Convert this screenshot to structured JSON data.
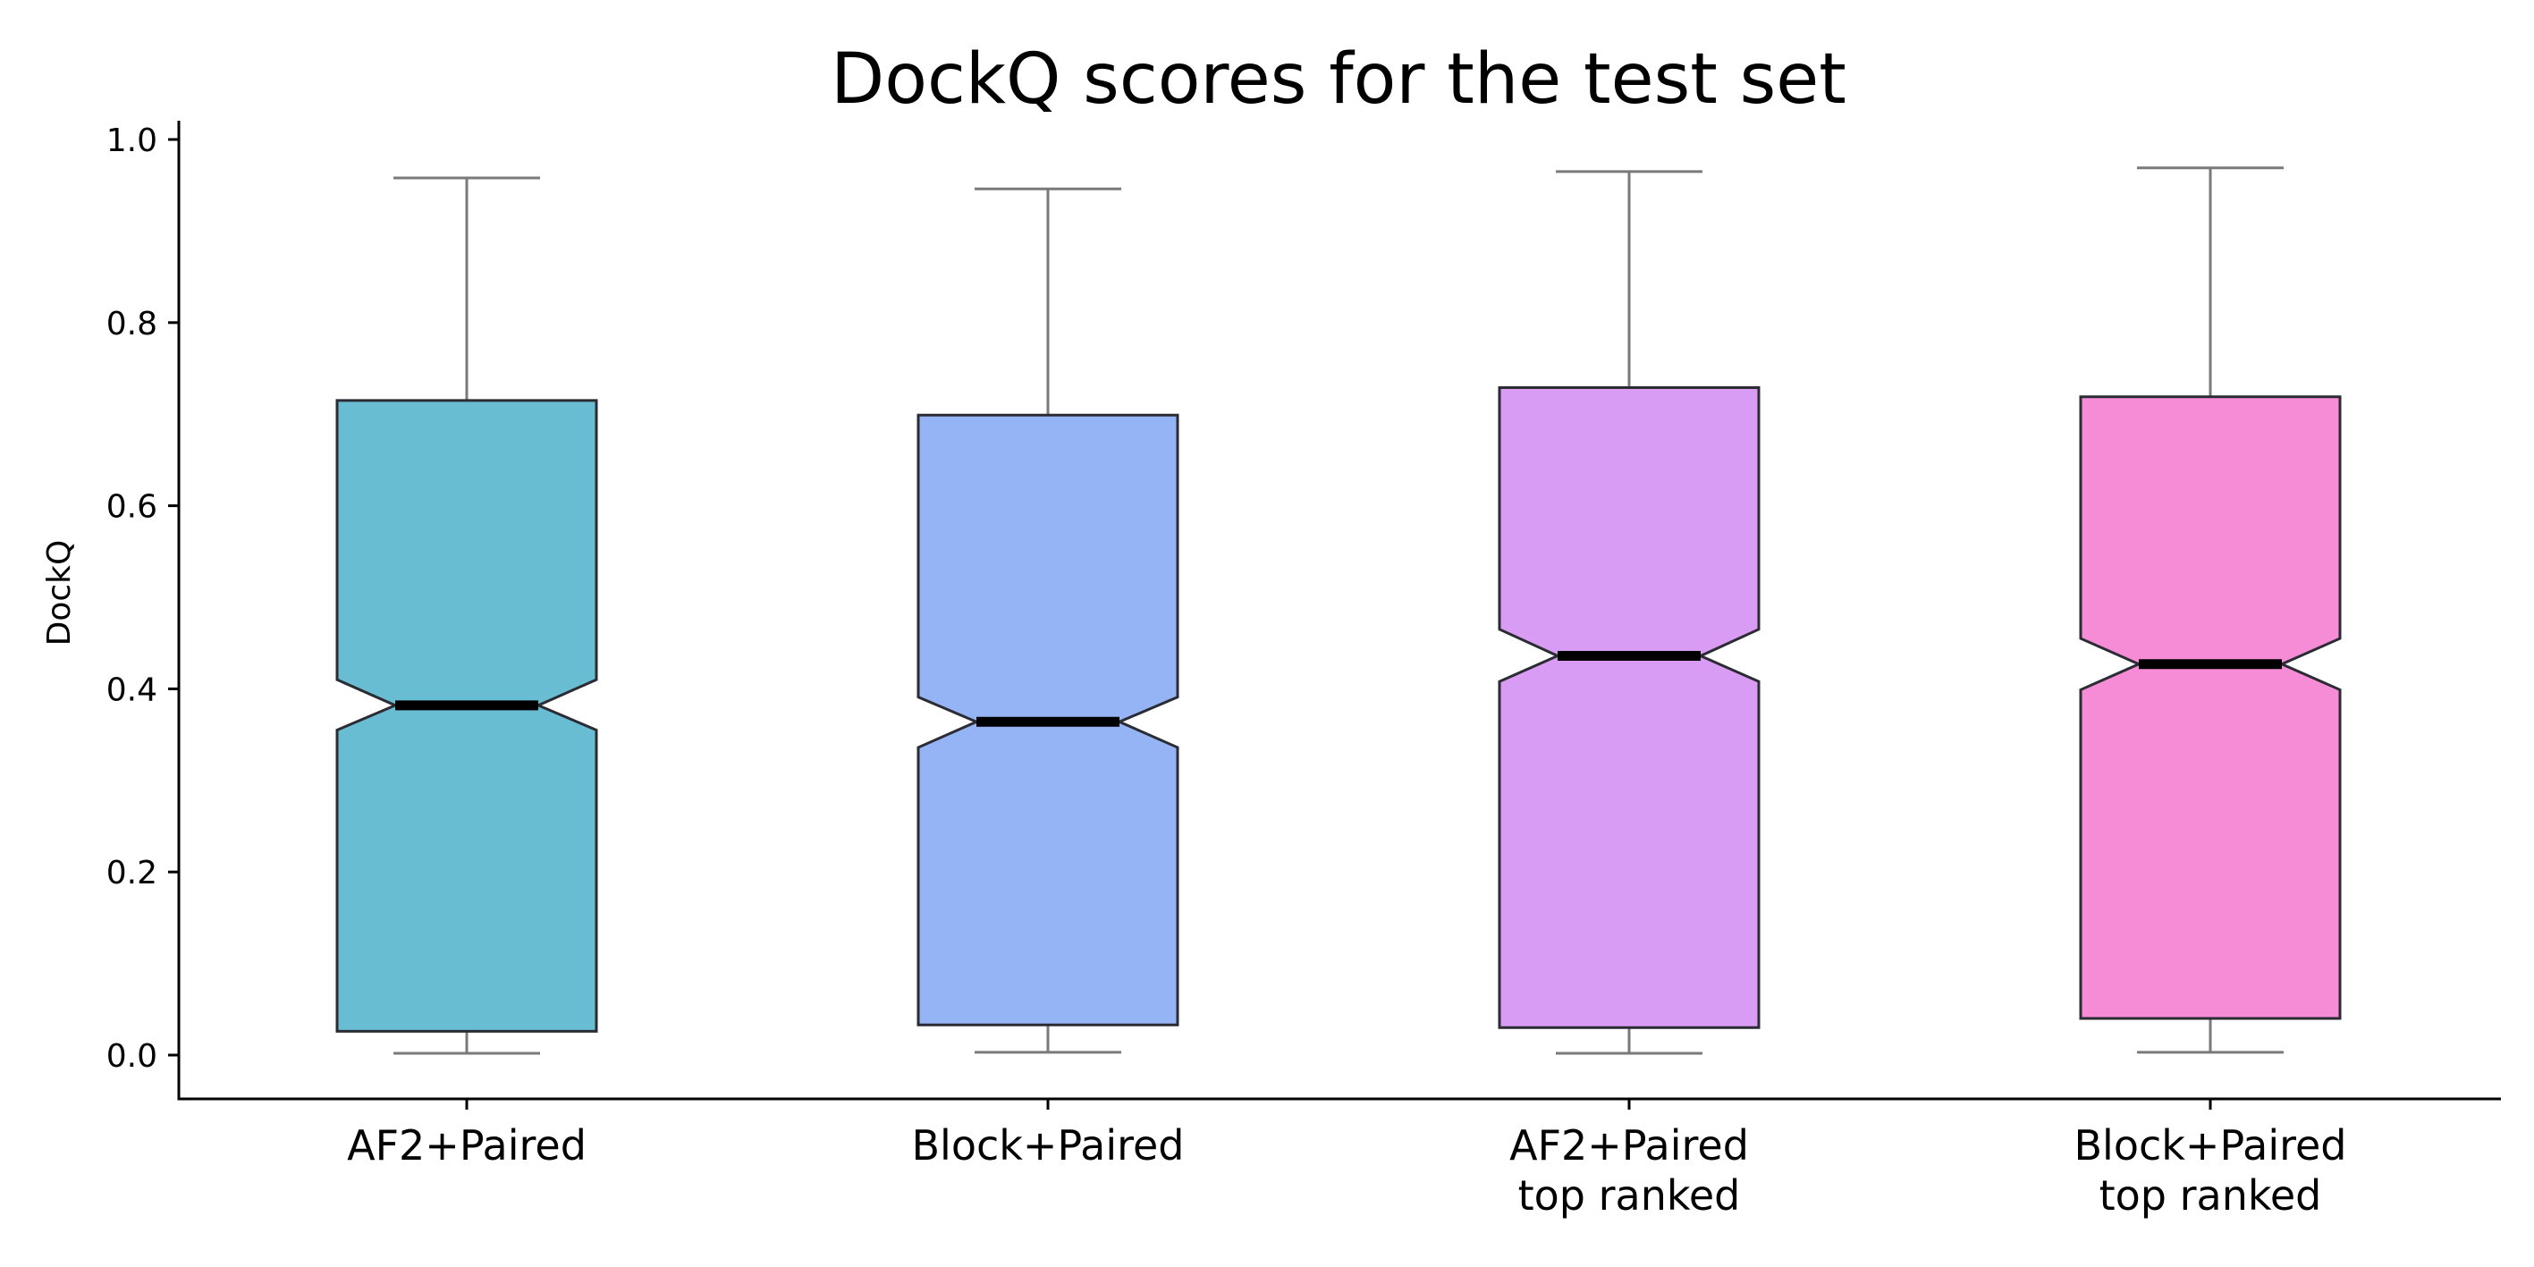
{
  "chart_data": {
    "type": "box",
    "title": "DockQ scores for the test set",
    "xlabel": "",
    "ylabel": "DockQ",
    "ylim": [
      -0.045,
      1.02
    ],
    "yticks": [
      0.0,
      0.2,
      0.4,
      0.6,
      0.8,
      1.0
    ],
    "ytick_labels": [
      "0.0",
      "0.2",
      "0.4",
      "0.6",
      "0.8",
      "1.0"
    ],
    "notched": true,
    "grid": false,
    "legend": "none",
    "categories": [
      [
        "AF2+Paired"
      ],
      [
        "Block+Paired"
      ],
      [
        "AF2+Paired",
        "top ranked"
      ],
      [
        "Block+Paired",
        "top ranked"
      ]
    ],
    "boxes": [
      {
        "whisker_low": 0.002,
        "q1": 0.026,
        "median": 0.382,
        "q3": 0.715,
        "whisker_high": 0.958,
        "notch_low": 0.355,
        "notch_high": 0.41,
        "color": "#69bdd3"
      },
      {
        "whisker_low": 0.003,
        "q1": 0.033,
        "median": 0.364,
        "q3": 0.699,
        "whisker_high": 0.946,
        "notch_low": 0.336,
        "notch_high": 0.391,
        "color": "#94b4f5"
      },
      {
        "whisker_low": 0.002,
        "q1": 0.03,
        "median": 0.436,
        "q3": 0.729,
        "whisker_high": 0.965,
        "notch_low": 0.408,
        "notch_high": 0.465,
        "color": "#d99cf4"
      },
      {
        "whisker_low": 0.003,
        "q1": 0.04,
        "median": 0.427,
        "q3": 0.719,
        "whisker_high": 0.969,
        "notch_low": 0.399,
        "notch_high": 0.455,
        "color": "#f68bd6"
      }
    ]
  }
}
